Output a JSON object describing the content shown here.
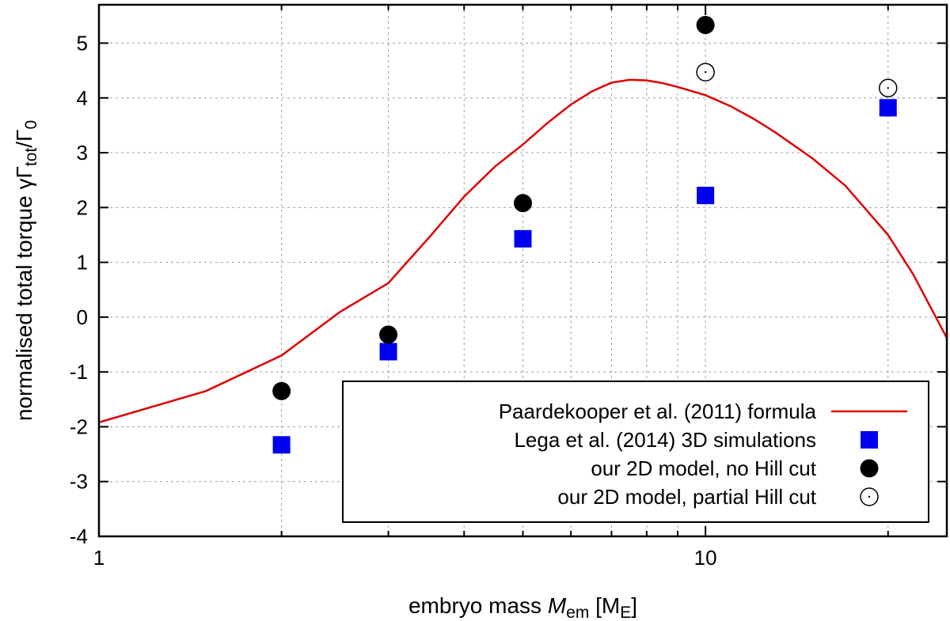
{
  "chart_data": {
    "type": "scatter",
    "x_scale": "log",
    "xlim": [
      1,
      25
    ],
    "ylim": [
      -4,
      5.7
    ],
    "grid": true,
    "legend_position": "bottom-right",
    "xlabel": {
      "prefix": "embryo mass ",
      "var": "M",
      "var_sub": "em",
      "unit_open": " [M",
      "unit_sub": "E",
      "unit_close": "]"
    },
    "ylabel": {
      "text": "normalised total torque γΓ",
      "sub1": "tot",
      "mid": "/Γ",
      "sub2": "0"
    },
    "x_ticks": [
      {
        "value": 1,
        "label": "1"
      },
      {
        "value": 10,
        "label": "10"
      }
    ],
    "y_ticks": [
      {
        "value": -4,
        "label": "-4"
      },
      {
        "value": -3,
        "label": "-3"
      },
      {
        "value": -2,
        "label": "-2"
      },
      {
        "value": -1,
        "label": "-1"
      },
      {
        "value": 0,
        "label": "0"
      },
      {
        "value": 1,
        "label": "1"
      },
      {
        "value": 2,
        "label": "2"
      },
      {
        "value": 3,
        "label": "3"
      },
      {
        "value": 4,
        "label": "4"
      },
      {
        "value": 5,
        "label": "5"
      }
    ],
    "series": [
      {
        "name": "Paardekooper et al. (2011) formula",
        "kind": "line",
        "color": "#dd0000",
        "x": [
          1,
          1.5,
          2,
          2.5,
          3,
          3.5,
          4,
          4.5,
          5,
          5.5,
          6,
          6.5,
          7,
          7.5,
          8,
          8.5,
          9,
          10,
          11,
          12,
          13,
          15,
          17,
          20,
          22,
          25
        ],
        "y": [
          -1.92,
          -1.35,
          -0.7,
          0.1,
          0.62,
          1.45,
          2.2,
          2.75,
          3.15,
          3.55,
          3.88,
          4.12,
          4.28,
          4.33,
          4.32,
          4.27,
          4.2,
          4.05,
          3.85,
          3.62,
          3.38,
          2.9,
          2.4,
          1.5,
          0.78,
          -0.38
        ]
      },
      {
        "name": "Lega et al. (2014) 3D simulations",
        "kind": "marker",
        "marker": "square",
        "color": "#0000ee",
        "x": [
          2,
          3,
          5,
          10,
          20
        ],
        "y": [
          -2.33,
          -0.63,
          1.43,
          2.22,
          3.82
        ]
      },
      {
        "name": "our 2D model, no Hill cut",
        "kind": "marker",
        "marker": "circle-filled",
        "color": "#000000",
        "x": [
          2,
          3,
          5,
          10
        ],
        "y": [
          -1.35,
          -0.32,
          2.08,
          5.33
        ]
      },
      {
        "name": "our 2D model, partial Hill cut",
        "kind": "marker",
        "marker": "circle-open",
        "color": "#000000",
        "x": [
          10,
          20
        ],
        "y": [
          4.47,
          4.18
        ]
      }
    ]
  }
}
